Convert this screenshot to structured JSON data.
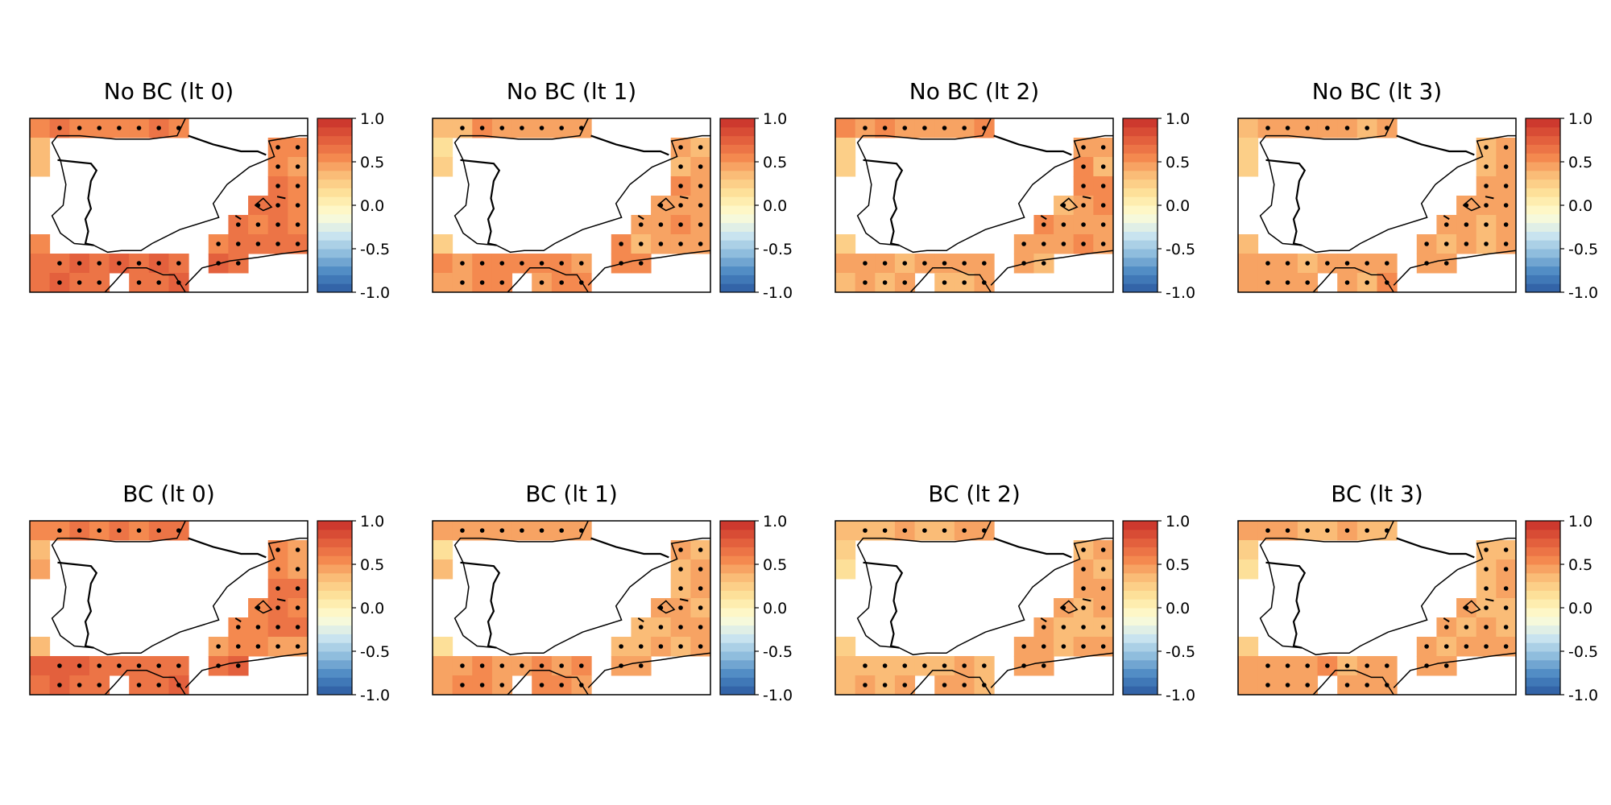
{
  "chart_data": {
    "type": "heatmap",
    "layout": {
      "rows": 2,
      "cols": 4
    },
    "colorbar": {
      "range": [
        -1.0,
        1.0
      ],
      "ticks": [
        1.0,
        0.5,
        0.0,
        -0.5,
        -1.0
      ],
      "tick_labels": [
        "1.0",
        "0.5",
        "0.0",
        "-0.5",
        "-1.0"
      ],
      "levels": 20,
      "colormap": "RdYlBu_r",
      "stops": [
        "#2c5aa0",
        "#4a86c2",
        "#8dbcdc",
        "#cde6f0",
        "#fffdd6",
        "#fde7a0",
        "#fbc07a",
        "#f4884e",
        "#e05a3a",
        "#c8302b"
      ]
    },
    "grid": {
      "cols": 14,
      "rows": 9
    },
    "land_mask": [
      "xxxxxxxx......",
      "x...........xx",
      "x...........xx",
      "............xx",
      "...........xxx",
      "..........xxxx",
      "x........xxxxx",
      "xxxxxxxx.xx...",
      "xxxx.xxx......"
    ],
    "panels": [
      {
        "title": "No BC (lt 0)",
        "base": 0.58,
        "africa": 0.68,
        "north": 0.52,
        "west": 0.44,
        "central": 0.74,
        "stippled": true
      },
      {
        "title": "No BC (lt 1)",
        "base": 0.44,
        "africa": 0.52,
        "north": 0.42,
        "west": 0.25,
        "central": 0.56,
        "stippled": true
      },
      {
        "title": "No BC (lt 2)",
        "base": 0.47,
        "africa": 0.45,
        "north": 0.45,
        "west": 0.28,
        "central": 0.58,
        "stippled": true
      },
      {
        "title": "No BC (lt 3)",
        "base": 0.42,
        "africa": 0.45,
        "north": 0.4,
        "west": 0.25,
        "central": 0.54,
        "stippled": true
      },
      {
        "title": "BC (lt 0)",
        "base": 0.56,
        "africa": 0.68,
        "north": 0.5,
        "west": 0.4,
        "central": 0.74,
        "stippled": true
      },
      {
        "title": "BC (lt 1)",
        "base": 0.44,
        "africa": 0.5,
        "north": 0.4,
        "west": 0.24,
        "central": 0.56,
        "stippled": true
      },
      {
        "title": "BC (lt 2)",
        "base": 0.42,
        "africa": 0.4,
        "north": 0.4,
        "west": 0.22,
        "central": 0.56,
        "stippled": true
      },
      {
        "title": "BC (lt 3)",
        "base": 0.41,
        "africa": 0.45,
        "north": 0.4,
        "west": 0.24,
        "central": 0.52,
        "stippled": true
      }
    ]
  }
}
